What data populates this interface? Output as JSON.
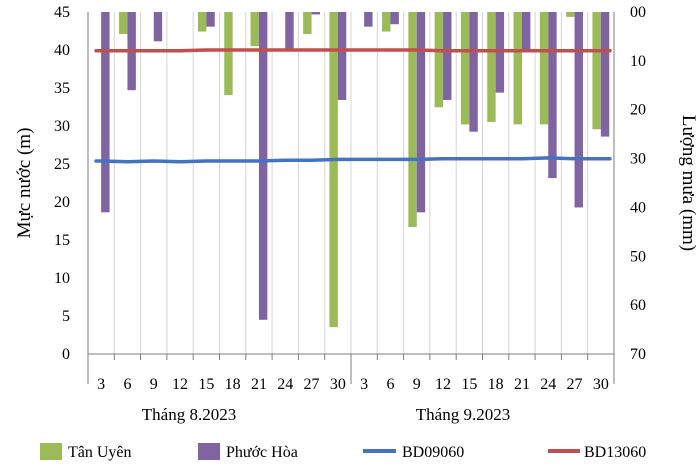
{
  "chart_data": {
    "type": "bar+line",
    "ylabel_left": "Mực nước (m)",
    "ylabel_right": "Lượng mưa (mm)",
    "ylim_left": [
      0,
      45
    ],
    "ylim_right": [
      0,
      70
    ],
    "right_axis_inverted": true,
    "y_ticks_left": [
      "0",
      "5",
      "10",
      "15",
      "20",
      "25",
      "30",
      "35",
      "40",
      "45"
    ],
    "y_ticks_right": [
      "00",
      "10",
      "20",
      "30",
      "40",
      "50",
      "60",
      "70"
    ],
    "x_tick_labels": [
      "3",
      "6",
      "9",
      "12",
      "15",
      "18",
      "21",
      "24",
      "27",
      "30",
      "3",
      "6",
      "9",
      "12",
      "15",
      "18",
      "21",
      "24",
      "27",
      "30"
    ],
    "groups": [
      {
        "label": "Tháng 8.2023"
      },
      {
        "label": "Tháng 9.2023"
      }
    ],
    "grid": true,
    "legend_position": "bottom",
    "bar_series": [
      {
        "name": "Tân Uyên",
        "color": "#9BBB59",
        "axis": "right",
        "values": [
          0,
          4.5,
          0,
          0,
          4,
          17,
          7,
          0,
          4.5,
          64.5,
          0,
          4,
          44,
          19.5,
          23,
          22.5,
          23,
          23,
          1,
          24
        ]
      },
      {
        "name": "Phước Hòa",
        "color": "#8064A2",
        "axis": "right",
        "values": [
          41,
          16,
          6,
          0,
          3,
          0,
          63,
          8,
          0.5,
          18,
          3,
          2.5,
          41,
          18,
          24.5,
          16.5,
          8,
          34,
          40,
          25.5
        ]
      }
    ],
    "line_series": [
      {
        "name": "BD09060",
        "color": "#4472C4",
        "axis": "left",
        "values": [
          25.4,
          25.3,
          25.4,
          25.3,
          25.4,
          25.4,
          25.4,
          25.5,
          25.5,
          25.6,
          25.6,
          25.6,
          25.6,
          25.7,
          25.7,
          25.7,
          25.7,
          25.8,
          25.7,
          25.7
        ]
      },
      {
        "name": "BD13060",
        "color": "#C0504D",
        "axis": "left",
        "values": [
          39.9,
          39.9,
          39.9,
          39.9,
          40.0,
          40.0,
          40.0,
          40.0,
          40.0,
          40.0,
          40.0,
          40.0,
          40.0,
          39.9,
          39.9,
          39.9,
          39.9,
          39.9,
          39.9,
          39.9
        ]
      }
    ]
  }
}
